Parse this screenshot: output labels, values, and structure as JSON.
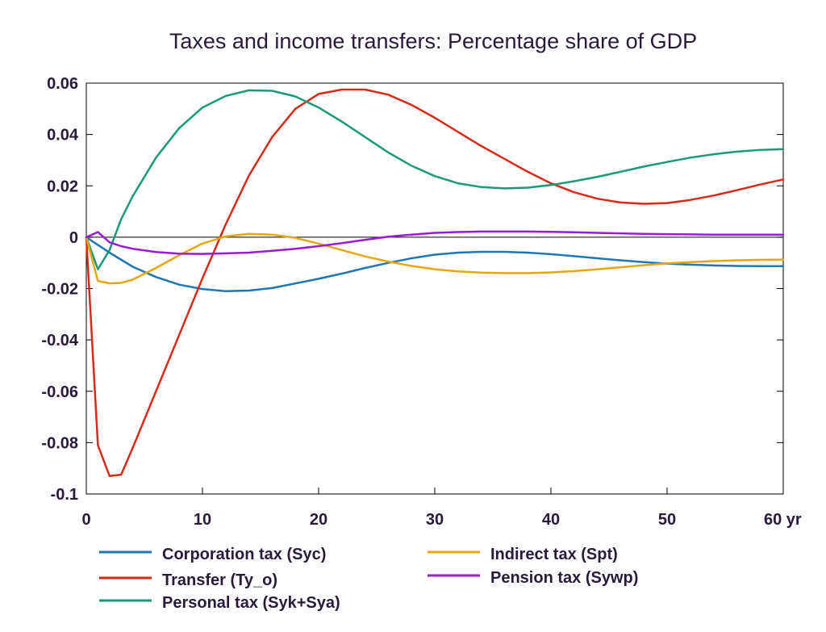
{
  "chart_data": {
    "type": "line",
    "title": "Taxes and income transfers: Percentage share of GDP",
    "xlabel": "",
    "ylabel": "",
    "xlim": [
      0,
      60
    ],
    "ylim": [
      -0.1,
      0.06
    ],
    "x_ticks": [
      {
        "value": 0,
        "label": "0"
      },
      {
        "value": 10,
        "label": "10"
      },
      {
        "value": 20,
        "label": "20"
      },
      {
        "value": 30,
        "label": "30"
      },
      {
        "value": 40,
        "label": "40"
      },
      {
        "value": 50,
        "label": "50"
      },
      {
        "value": 60,
        "label": "60 yr"
      }
    ],
    "y_ticks": [
      {
        "value": 0.06,
        "label": "0.06"
      },
      {
        "value": 0.04,
        "label": "0.04"
      },
      {
        "value": 0.02,
        "label": "0.02"
      },
      {
        "value": 0,
        "label": "0"
      },
      {
        "value": -0.02,
        "label": "-0.02"
      },
      {
        "value": -0.04,
        "label": "-0.04"
      },
      {
        "value": -0.06,
        "label": "-0.06"
      },
      {
        "value": -0.08,
        "label": "-0.08"
      },
      {
        "value": -0.1,
        "label": "-0.1"
      }
    ],
    "grid": false,
    "legend_position": "bottom",
    "series": [
      {
        "name": "Corporation tax (Syc)",
        "color": "#1f77b4",
        "x": [
          0,
          1,
          2,
          4,
          6,
          8,
          10,
          12,
          14,
          16,
          18,
          20,
          22,
          24,
          26,
          28,
          30,
          32,
          34,
          36,
          38,
          40,
          42,
          44,
          46,
          48,
          50,
          52,
          54,
          56,
          58,
          60
        ],
        "y": [
          0,
          -0.003,
          -0.006,
          -0.0115,
          -0.0155,
          -0.0185,
          -0.0202,
          -0.021,
          -0.0208,
          -0.0198,
          -0.018,
          -0.0162,
          -0.0142,
          -0.012,
          -0.01,
          -0.0082,
          -0.0068,
          -0.006,
          -0.0057,
          -0.0057,
          -0.006,
          -0.0066,
          -0.0074,
          -0.0082,
          -0.009,
          -0.0097,
          -0.0103,
          -0.0107,
          -0.011,
          -0.0112,
          -0.0113,
          -0.0113
        ]
      },
      {
        "name": "Transfer (Ty_o)",
        "color": "#d62a1a",
        "x": [
          0,
          1,
          2,
          3,
          4,
          6,
          8,
          10,
          12,
          14,
          16,
          18,
          20,
          22,
          24,
          26,
          28,
          30,
          32,
          34,
          36,
          38,
          40,
          42,
          44,
          46,
          48,
          50,
          52,
          54,
          56,
          58,
          60
        ],
        "y": [
          0,
          -0.081,
          -0.093,
          -0.0925,
          -0.082,
          -0.06,
          -0.038,
          -0.016,
          0.005,
          0.024,
          0.039,
          0.05,
          0.0558,
          0.0575,
          0.0575,
          0.0555,
          0.0515,
          0.0465,
          0.041,
          0.0355,
          0.0305,
          0.0255,
          0.021,
          0.0175,
          0.015,
          0.0135,
          0.013,
          0.0133,
          0.0145,
          0.0162,
          0.0183,
          0.0205,
          0.0225
        ]
      },
      {
        "name": "Personal tax (Syk+Sya)",
        "color": "#1a9a7a",
        "x": [
          0,
          1,
          2,
          3,
          4,
          6,
          8,
          10,
          12,
          14,
          16,
          18,
          20,
          22,
          24,
          26,
          28,
          30,
          32,
          34,
          36,
          38,
          40,
          42,
          44,
          46,
          48,
          50,
          52,
          54,
          56,
          58,
          60
        ],
        "y": [
          0,
          -0.0125,
          -0.005,
          0.007,
          0.016,
          0.031,
          0.0425,
          0.0505,
          0.055,
          0.0572,
          0.057,
          0.0548,
          0.0505,
          0.045,
          0.039,
          0.033,
          0.0278,
          0.0238,
          0.021,
          0.0195,
          0.019,
          0.0193,
          0.0203,
          0.0218,
          0.0235,
          0.0255,
          0.0275,
          0.0293,
          0.031,
          0.0323,
          0.0333,
          0.034,
          0.0343
        ]
      },
      {
        "name": "Indirect tax (Spt)",
        "color": "#e6a70f",
        "x": [
          0,
          1,
          2,
          3,
          4,
          6,
          8,
          10,
          12,
          14,
          16,
          18,
          20,
          22,
          24,
          26,
          28,
          30,
          32,
          34,
          36,
          38,
          40,
          42,
          44,
          46,
          48,
          50,
          52,
          54,
          56,
          58,
          60
        ],
        "y": [
          0,
          -0.017,
          -0.018,
          -0.0178,
          -0.0165,
          -0.012,
          -0.007,
          -0.0025,
          0.0003,
          0.0013,
          0.001,
          -0.0003,
          -0.0025,
          -0.005,
          -0.0075,
          -0.0095,
          -0.0112,
          -0.0125,
          -0.0133,
          -0.0138,
          -0.014,
          -0.014,
          -0.0137,
          -0.0132,
          -0.0125,
          -0.0117,
          -0.0109,
          -0.0102,
          -0.0097,
          -0.0093,
          -0.009,
          -0.0088,
          -0.0087
        ]
      },
      {
        "name": "Pension tax (Sywp)",
        "color": "#9a1ad6",
        "x": [
          0,
          1,
          2,
          3,
          4,
          6,
          8,
          10,
          12,
          14,
          16,
          18,
          20,
          22,
          24,
          26,
          28,
          30,
          32,
          34,
          36,
          38,
          40,
          42,
          44,
          46,
          48,
          50,
          52,
          54,
          56,
          58,
          60
        ],
        "y": [
          0,
          0.002,
          -0.002,
          -0.0035,
          -0.0045,
          -0.0058,
          -0.0064,
          -0.0065,
          -0.0063,
          -0.006,
          -0.0053,
          -0.0045,
          -0.0035,
          -0.0023,
          -0.001,
          0.0002,
          0.001,
          0.0017,
          0.002,
          0.0022,
          0.0022,
          0.0022,
          0.0021,
          0.0019,
          0.0017,
          0.0015,
          0.0013,
          0.0012,
          0.0011,
          0.001,
          0.001,
          0.001,
          0.001
        ]
      }
    ]
  }
}
